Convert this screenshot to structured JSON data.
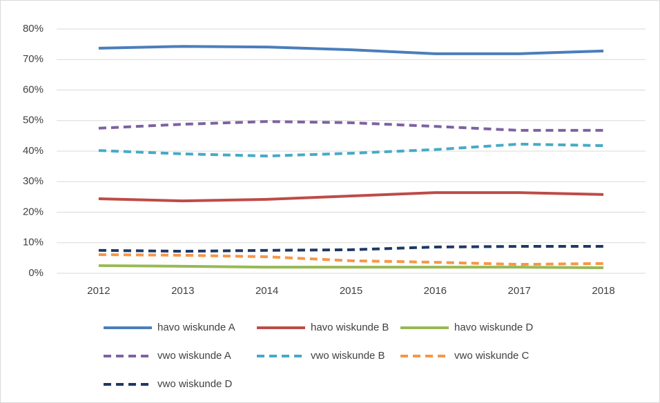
{
  "chart_data": {
    "type": "line",
    "categories": [
      "2012",
      "2013",
      "2014",
      "2015",
      "2016",
      "2017",
      "2018"
    ],
    "ylim": [
      0,
      80
    ],
    "yticks": [
      {
        "value": 0,
        "label": "0%"
      },
      {
        "value": 10,
        "label": "10%"
      },
      {
        "value": 20,
        "label": "20%"
      },
      {
        "value": 30,
        "label": "30%"
      },
      {
        "value": 40,
        "label": "40%"
      },
      {
        "value": 50,
        "label": "50%"
      },
      {
        "value": 60,
        "label": "60%"
      },
      {
        "value": 70,
        "label": "70%"
      },
      {
        "value": 80,
        "label": "80%"
      }
    ],
    "grid": true,
    "legend": "bottom",
    "series": [
      {
        "name": "havo wiskunde A",
        "color": "#4a7ebb",
        "dashed": false,
        "values": [
          73.7,
          74.3,
          74.1,
          73.2,
          71.9,
          71.9,
          72.8
        ]
      },
      {
        "name": "havo wiskunde B",
        "color": "#be4b48",
        "dashed": false,
        "values": [
          24.4,
          23.7,
          24.2,
          25.3,
          26.4,
          26.4,
          25.8
        ]
      },
      {
        "name": "havo wiskunde D",
        "color": "#98b954",
        "dashed": false,
        "values": [
          2.5,
          2.3,
          2.0,
          2.0,
          2.0,
          2.0,
          1.8
        ]
      },
      {
        "name": "vwo wiskunde A",
        "color": "#7e62a1",
        "dashed": true,
        "values": [
          47.5,
          48.8,
          49.7,
          49.3,
          48.1,
          46.8,
          46.8
        ]
      },
      {
        "name": "vwo wiskunde B",
        "color": "#46aac5",
        "dashed": true,
        "values": [
          40.2,
          39.1,
          38.4,
          39.3,
          40.5,
          42.3,
          41.8
        ]
      },
      {
        "name": "vwo wiskunde C",
        "color": "#f79646",
        "dashed": true,
        "values": [
          6.1,
          5.9,
          5.4,
          4.1,
          3.6,
          2.9,
          3.2
        ]
      },
      {
        "name": "vwo wiskunde D",
        "color": "#1f3864",
        "dashed": true,
        "values": [
          7.5,
          7.2,
          7.5,
          7.7,
          8.6,
          8.8,
          8.8
        ]
      }
    ]
  }
}
